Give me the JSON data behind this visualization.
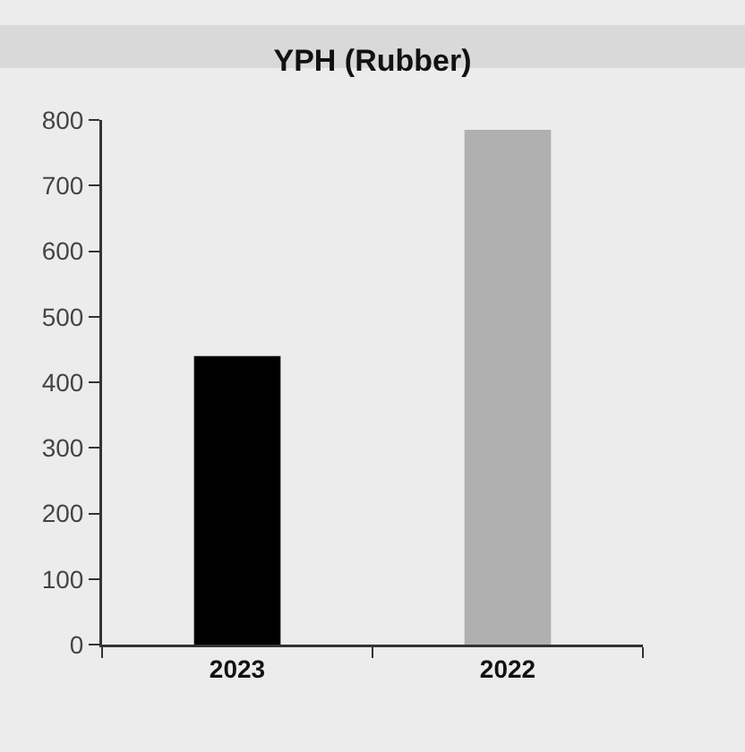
{
  "chart_data": {
    "type": "bar",
    "title": "YPH (Rubber)",
    "categories": [
      "2023",
      "2022"
    ],
    "values": [
      440,
      785
    ],
    "colors": [
      "#000000",
      "#b0b0b0"
    ],
    "ylim": [
      0,
      800
    ],
    "yticks": [
      0,
      100,
      200,
      300,
      400,
      500,
      600,
      700,
      800
    ],
    "grid": false
  }
}
